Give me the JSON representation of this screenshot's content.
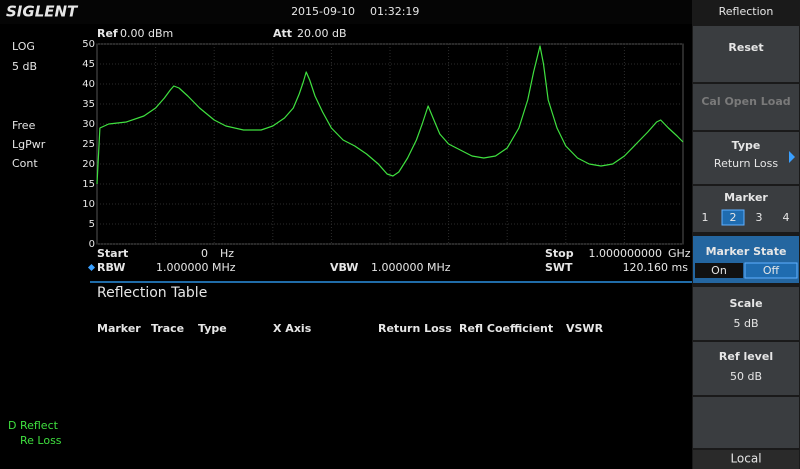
{
  "header": {
    "brand": "SIGLENT",
    "date": "2015-09-10",
    "time": "01:32:19"
  },
  "left_panel": {
    "scale_type": "LOG",
    "scale": "5 dB",
    "trigger": "Free",
    "detector": "LgPwr",
    "sweep": "Cont",
    "trace_mode": "D Reflect",
    "trace_label": "Re Loss"
  },
  "top_info": {
    "ref_label": "Ref",
    "ref_value": "0.00 dBm",
    "att_label": "Att",
    "att_value": "20.00 dB"
  },
  "bottom_info": {
    "start_label": "Start",
    "start_value": "0",
    "start_unit": "Hz",
    "stop_label": "Stop",
    "stop_value": "1.000000000",
    "stop_unit": "GHz",
    "rbw_label": "RBW",
    "rbw_value": "1.000000  MHz",
    "vbw_label": "VBW",
    "vbw_value": "1.000000  MHz",
    "swt_label": "SWT",
    "swt_value": "120.160 ms"
  },
  "table": {
    "title": "Reflection Table",
    "columns": [
      "Marker",
      "Trace",
      "Type",
      "X Axis",
      "Return Loss",
      "Refl Coefficient",
      "VSWR"
    ]
  },
  "menu": {
    "title": "Reflection",
    "reset": "Reset",
    "cal": "Cal Open Load",
    "type_label": "Type",
    "type_value": "Return Loss",
    "marker_label": "Marker",
    "markers": [
      "1",
      "2",
      "3",
      "4"
    ],
    "marker_state_label": "Marker State",
    "marker_state_on": "On",
    "marker_state_off": "Off",
    "scale_label": "Scale",
    "scale_value": "5 dB",
    "ref_level_label": "Ref level",
    "ref_level_value": "50 dB",
    "local": "Local"
  },
  "chart_data": {
    "type": "line",
    "x": [
      0,
      0.005,
      0.02,
      0.05,
      0.08,
      0.1,
      0.115,
      0.125,
      0.131,
      0.14,
      0.155,
      0.175,
      0.2,
      0.22,
      0.25,
      0.28,
      0.3,
      0.32,
      0.335,
      0.345,
      0.352,
      0.357,
      0.363,
      0.372,
      0.385,
      0.4,
      0.42,
      0.44,
      0.46,
      0.48,
      0.495,
      0.505,
      0.515,
      0.53,
      0.545,
      0.555,
      0.565,
      0.575,
      0.585,
      0.6,
      0.62,
      0.64,
      0.66,
      0.68,
      0.7,
      0.72,
      0.735,
      0.745,
      0.756,
      0.762,
      0.77,
      0.785,
      0.8,
      0.82,
      0.84,
      0.86,
      0.88,
      0.9,
      0.92,
      0.94,
      0.955,
      0.962,
      0.975,
      0.99,
      1
    ],
    "values": [
      15,
      29,
      30,
      30.5,
      32,
      34,
      36.5,
      38.5,
      39.5,
      39,
      37,
      34,
      31,
      29.5,
      28.5,
      28.5,
      29.5,
      31.5,
      34,
      37.5,
      40.5,
      43,
      41,
      37,
      33,
      29,
      26,
      24.5,
      22.5,
      20,
      17.5,
      17,
      18,
      21.5,
      26,
      30,
      34.5,
      31,
      27.5,
      25,
      23.5,
      22,
      21.5,
      22,
      24,
      29,
      36,
      43,
      49.5,
      45,
      36,
      29,
      24.5,
      21.5,
      20,
      19.5,
      20,
      22,
      25,
      28,
      30.5,
      31,
      29,
      27,
      25.5
    ],
    "color": "#3fe03f",
    "xlim": [
      0,
      1
    ],
    "ylim": [
      0,
      50
    ],
    "yticks": [
      0,
      5,
      10,
      15,
      20,
      25,
      30,
      35,
      40,
      45,
      50
    ],
    "grid": true
  }
}
